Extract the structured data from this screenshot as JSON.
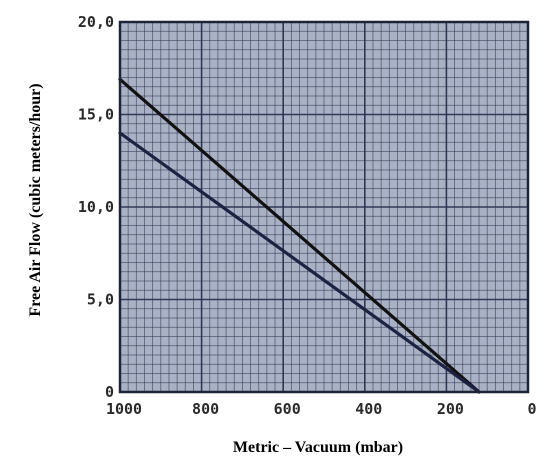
{
  "chart_data": {
    "type": "line",
    "title": "",
    "xlabel": "Metric – Vacuum (mbar)",
    "ylabel": "Free Air Flow (cubic meters/hour)",
    "x_reversed": true,
    "xlim": [
      1000,
      0
    ],
    "ylim": [
      0,
      20
    ],
    "grid": true,
    "x_ticks": [
      {
        "value": 1000,
        "label": "1000"
      },
      {
        "value": 800,
        "label": "800"
      },
      {
        "value": 600,
        "label": "600"
      },
      {
        "value": 400,
        "label": "400"
      },
      {
        "value": 200,
        "label": "200"
      },
      {
        "value": 0,
        "label": "0"
      }
    ],
    "y_ticks": [
      {
        "value": 0,
        "label": "0"
      },
      {
        "value": 5,
        "label": "5,0"
      },
      {
        "value": 10,
        "label": "10,0"
      },
      {
        "value": 15,
        "label": "15,0"
      },
      {
        "value": 20,
        "label": "20,0"
      }
    ],
    "series": [
      {
        "x": [
          1000,
          120
        ],
        "y": [
          16.9,
          0
        ],
        "color": "#111111"
      },
      {
        "x": [
          1000,
          120
        ],
        "y": [
          14.0,
          0
        ],
        "color": "#1c2342"
      }
    ],
    "colors": {
      "plot_background": "#a9b1c4",
      "grid": "#2b3350",
      "frame": "#1e2438"
    }
  }
}
